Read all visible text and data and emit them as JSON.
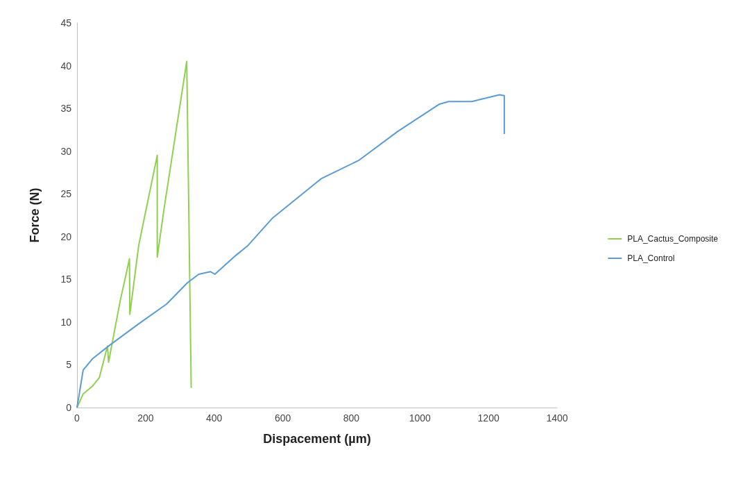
{
  "chart_data": {
    "type": "line",
    "xlabel": "Dispacement (µm)",
    "ylabel": "Force (N)",
    "xlim": [
      0,
      1400
    ],
    "xticks": [
      0,
      200,
      400,
      600,
      800,
      1000,
      1200,
      1400
    ],
    "ylim": [
      0,
      45
    ],
    "yticks": [
      0,
      5,
      10,
      15,
      20,
      25,
      30,
      35,
      40,
      45
    ],
    "grid": false,
    "legend": "right",
    "marker": "none",
    "line_style": "solid",
    "series": [
      {
        "name": "PLA_Cactus_Composite",
        "color": "#8fd14f",
        "x": [
          0,
          18,
          45,
          65,
          89,
          92,
          126,
          153,
          154,
          180,
          234,
          234,
          254,
          320,
          333
        ],
        "values": [
          0,
          1.6,
          2.5,
          3.5,
          7.2,
          5.3,
          12.5,
          17.4,
          10.9,
          19,
          29.5,
          17.6,
          23.3,
          40.5,
          2.3
        ]
      },
      {
        "name": "PLA_Control",
        "color": "#5b9bd5",
        "x": [
          0,
          18,
          45,
          92,
          180,
          261,
          322,
          355,
          389,
          402,
          463,
          497,
          571,
          713,
          821,
          935,
          1057,
          1084,
          1151,
          1232,
          1246,
          1246
        ],
        "values": [
          0,
          4.4,
          5.7,
          7.2,
          9.8,
          12.1,
          14.6,
          15.6,
          15.9,
          15.6,
          17.8,
          18.9,
          22.2,
          26.8,
          28.9,
          32.3,
          35.5,
          35.8,
          35.8,
          36.6,
          36.5,
          32
        ]
      }
    ]
  }
}
